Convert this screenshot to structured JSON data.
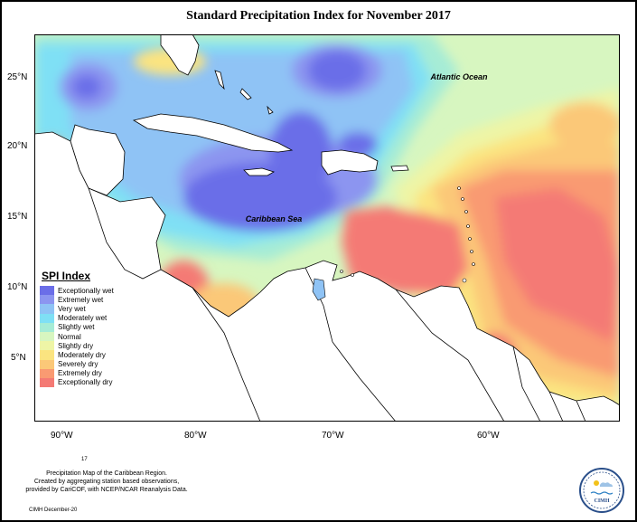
{
  "title": "Standard Precipitation Index for November 2017",
  "map_labels": {
    "atlantic": "Atlantic Ocean",
    "caribbean": "Caribbean Sea"
  },
  "lat_ticks": [
    "25°N",
    "20°N",
    "15°N",
    "10°N",
    "5°N"
  ],
  "lon_ticks": [
    "90°W",
    "80°W",
    "70°W",
    "60°W"
  ],
  "legend": {
    "title": "SPI Index",
    "items": [
      {
        "label": "Exceptionally wet",
        "color": "#6b6ee8"
      },
      {
        "label": "Extremely wet",
        "color": "#8c95f0"
      },
      {
        "label": "Very wet",
        "color": "#8fc3f5"
      },
      {
        "label": "Moderately wet",
        "color": "#7fe0f5"
      },
      {
        "label": "Slightly wet",
        "color": "#a6ecd6"
      },
      {
        "label": "Normal",
        "color": "#d7f6c0"
      },
      {
        "label": "Slightly dry",
        "color": "#eef5a6"
      },
      {
        "label": "Moderately dry",
        "color": "#fbe480"
      },
      {
        "label": "Severely dry",
        "color": "#fbc878"
      },
      {
        "label": "Extremely dry",
        "color": "#f99a72"
      },
      {
        "label": "Exceptionally dry",
        "color": "#f47a74"
      }
    ]
  },
  "page_number": "17",
  "caption": {
    "line1": "Precipitation Map of the Caribbean Region.",
    "line2": "Created by aggregating station based observations,",
    "line3": "provided by CariCOF, with NCEP/NCAR Reanalysis Data."
  },
  "footer": "CIMH December-20",
  "logo_text": "CIMH"
}
